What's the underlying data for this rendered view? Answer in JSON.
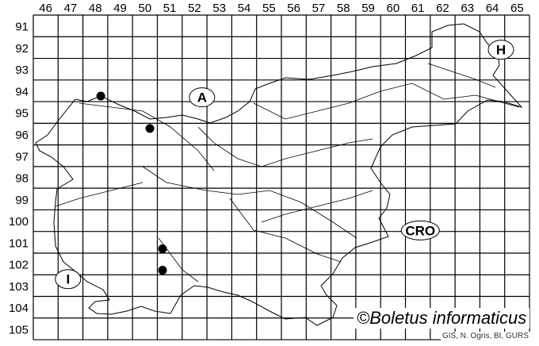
{
  "map": {
    "column_labels": [
      "46",
      "47",
      "48",
      "49",
      "50",
      "51",
      "52",
      "53",
      "54",
      "55",
      "56",
      "57",
      "58",
      "59",
      "60",
      "61",
      "62",
      "63",
      "64",
      "65"
    ],
    "row_labels": [
      "91",
      "92",
      "93",
      "94",
      "95",
      "96",
      "97",
      "98",
      "99",
      "100",
      "101",
      "102",
      "103",
      "104",
      "105"
    ],
    "country_labels": [
      {
        "text": "A",
        "col": 52.8,
        "row": 94.8
      },
      {
        "text": "H",
        "col": 64.85,
        "row": 92.6
      },
      {
        "text": "CRO",
        "col": 61.6,
        "row": 100.95
      },
      {
        "text": "I",
        "col": 47.4,
        "row": 103.2
      }
    ],
    "occurrences": [
      {
        "col": 48.72,
        "row": 94.74
      },
      {
        "col": 50.7,
        "row": 96.24
      },
      {
        "col": 51.21,
        "row": 101.8
      },
      {
        "col": 51.21,
        "row": 102.79
      }
    ],
    "colors": {
      "grid": "#000000",
      "border": "#000000",
      "marker": "#000000"
    }
  },
  "credits": {
    "copyright": "©Boletus informaticus",
    "source": "GIS, N. Ogris, BI, GURS"
  }
}
